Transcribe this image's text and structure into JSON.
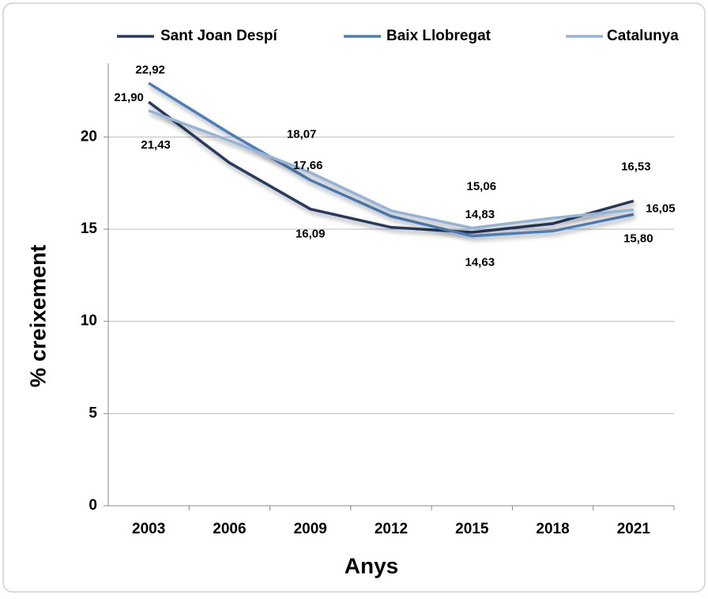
{
  "chart_data": {
    "type": "line",
    "x_label": "Anys",
    "y_label": "% creixement",
    "categories": [
      "2003",
      "2006",
      "2009",
      "2012",
      "2015",
      "2018",
      "2021"
    ],
    "series": [
      {
        "name": "Sant Joan Despí",
        "color": "#263b5e",
        "values": [
          21.9,
          18.6,
          16.09,
          15.1,
          14.83,
          15.3,
          16.53
        ],
        "value_labels": [
          "21,90",
          null,
          "16,09",
          null,
          "14,83",
          null,
          "16,53"
        ]
      },
      {
        "name": "Baix Llobregat",
        "color": "#4a7ebb",
        "values": [
          22.92,
          20.2,
          17.66,
          15.7,
          14.63,
          14.9,
          15.8
        ],
        "value_labels": [
          "22,92",
          null,
          "17,66",
          null,
          "14,63",
          null,
          "15,80"
        ]
      },
      {
        "name": "Catalunya",
        "color": "#95b3d7",
        "values": [
          21.43,
          19.8,
          18.07,
          16.0,
          15.06,
          15.6,
          16.05
        ],
        "value_labels": [
          "21,43",
          null,
          "18,07",
          null,
          "15,06",
          null,
          "16,05"
        ]
      }
    ],
    "ylim": [
      0,
      24
    ],
    "yticks": [
      0,
      5,
      10,
      15,
      20
    ],
    "grid": true,
    "legend": "top"
  }
}
